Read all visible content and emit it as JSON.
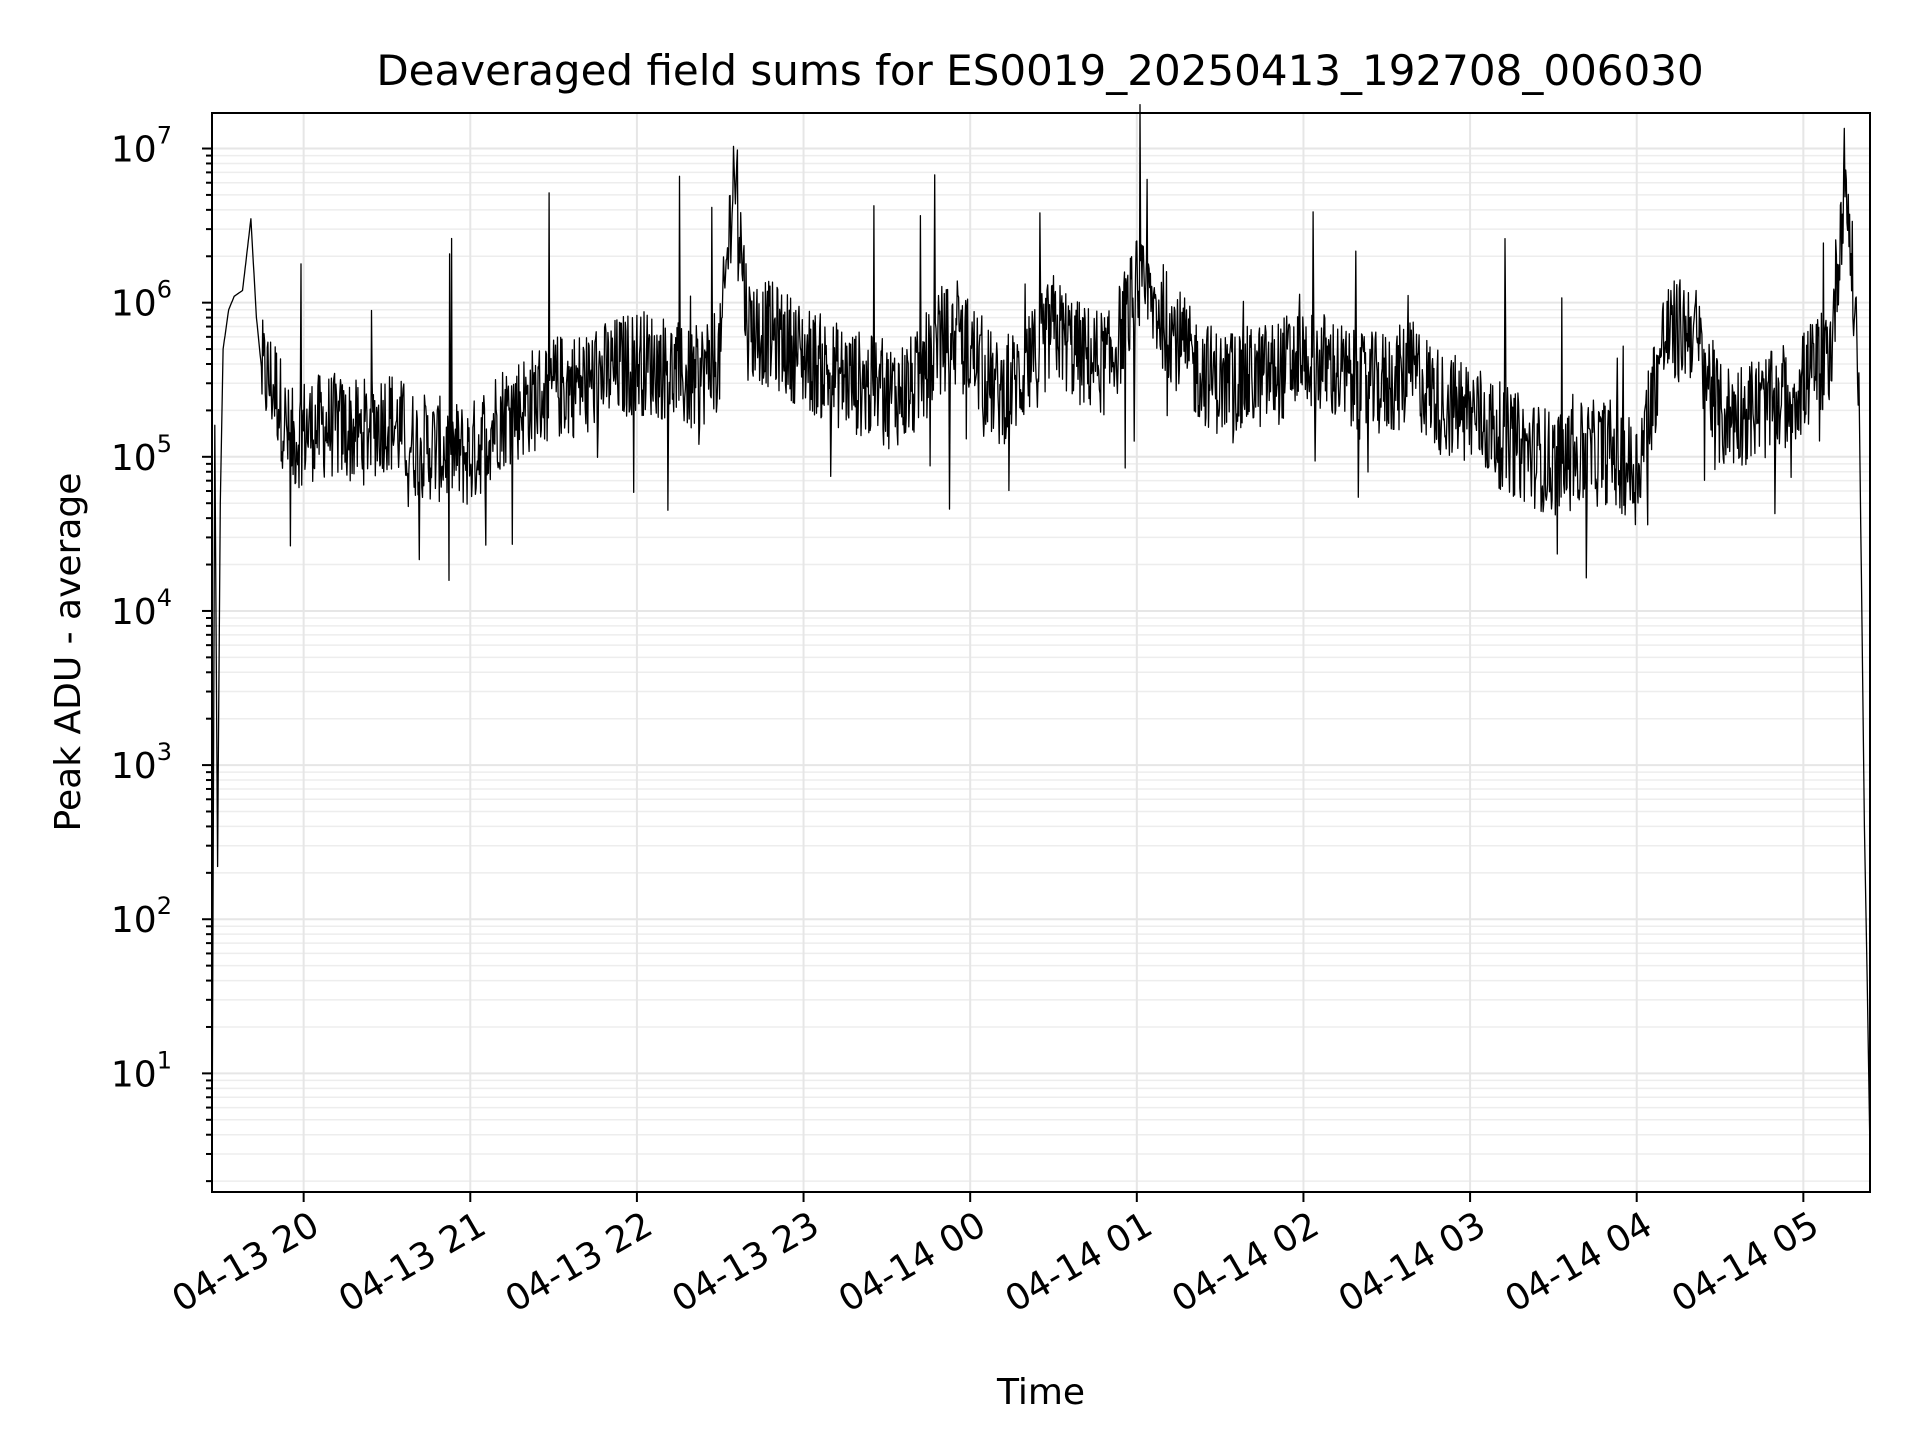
{
  "chart_data": {
    "type": "line",
    "title": "Deaveraged field sums for ES0019_20250413_192708_006030",
    "xlabel": "Time",
    "ylabel": "Peak ADU - average",
    "yscale": "log",
    "ylim": [
      1.7,
      17000000
    ],
    "xlim": [
      "2025-04-13 19:27",
      "2025-04-14 05:24"
    ],
    "grid": true,
    "line_color": "#000000",
    "x_ticks": [
      "04-13 20",
      "04-13 21",
      "04-13 22",
      "04-13 23",
      "04-14 00",
      "04-14 01",
      "04-14 02",
      "04-14 03",
      "04-14 04",
      "04-14 05"
    ],
    "x_tick_times": [
      "2025-04-13 20:00",
      "2025-04-13 21:00",
      "2025-04-13 22:00",
      "2025-04-13 23:00",
      "2025-04-14 00:00",
      "2025-04-14 01:00",
      "2025-04-14 02:00",
      "2025-04-14 03:00",
      "2025-04-14 04:00",
      "2025-04-14 05:00"
    ],
    "y_ticks": [
      {
        "base": "10",
        "exp": "1",
        "value": 10
      },
      {
        "base": "10",
        "exp": "2",
        "value": 100
      },
      {
        "base": "10",
        "exp": "3",
        "value": 1000
      },
      {
        "base": "10",
        "exp": "4",
        "value": 10000
      },
      {
        "base": "10",
        "exp": "5",
        "value": 100000
      },
      {
        "base": "10",
        "exp": "6",
        "value": 1000000
      },
      {
        "base": "10",
        "exp": "7",
        "value": 10000000
      }
    ],
    "series": [
      {
        "x": [
          "2025-04-13 19:27",
          "2025-04-13 19:28",
          "2025-04-13 19:29",
          "2025-04-13 19:30",
          "2025-04-13 19:31",
          "2025-04-13 19:33",
          "2025-04-13 19:35",
          "2025-04-13 19:38",
          "2025-04-13 19:41",
          "2025-04-13 19:43",
          "2025-04-13 19:45",
          "2025-04-13 19:50",
          "2025-04-13 19:55",
          "2025-04-13 20:00",
          "2025-04-13 20:10",
          "2025-04-13 20:20",
          "2025-04-13 20:30",
          "2025-04-13 20:40",
          "2025-04-13 20:50",
          "2025-04-13 21:00",
          "2025-04-13 21:10",
          "2025-04-13 21:20",
          "2025-04-13 21:30",
          "2025-04-13 21:40",
          "2025-04-13 21:50",
          "2025-04-13 22:00",
          "2025-04-13 22:10",
          "2025-04-13 22:20",
          "2025-04-13 22:30",
          "2025-04-13 22:35",
          "2025-04-13 22:40",
          "2025-04-13 22:50",
          "2025-04-13 23:00",
          "2025-04-13 23:10",
          "2025-04-13 23:20",
          "2025-04-13 23:30",
          "2025-04-13 23:40",
          "2025-04-13 23:50",
          "2025-04-14 00:00",
          "2025-04-14 00:10",
          "2025-04-14 00:20",
          "2025-04-14 00:30",
          "2025-04-14 00:40",
          "2025-04-14 00:50",
          "2025-04-14 01:00",
          "2025-04-14 01:10",
          "2025-04-14 01:20",
          "2025-04-14 01:30",
          "2025-04-14 01:40",
          "2025-04-14 01:50",
          "2025-04-14 02:00",
          "2025-04-14 02:10",
          "2025-04-14 02:20",
          "2025-04-14 02:30",
          "2025-04-14 02:40",
          "2025-04-14 02:50",
          "2025-04-14 03:00",
          "2025-04-14 03:10",
          "2025-04-14 03:20",
          "2025-04-14 03:30",
          "2025-04-14 03:40",
          "2025-04-14 03:50",
          "2025-04-14 04:00",
          "2025-04-14 04:10",
          "2025-04-14 04:20",
          "2025-04-14 04:30",
          "2025-04-14 04:40",
          "2025-04-14 04:50",
          "2025-04-14 05:00",
          "2025-04-14 05:10",
          "2025-04-14 05:15",
          "2025-04-14 05:20",
          "2025-04-14 05:22",
          "2025-04-14 05:23",
          "2025-04-14 05:24"
        ],
        "y": [
          2,
          160000,
          220,
          50000,
          500000,
          900000,
          1100000,
          1200000,
          3500000,
          800000,
          350000,
          280000,
          120000,
          150000,
          160000,
          140000,
          180000,
          120000,
          110000,
          100000,
          180000,
          220000,
          280000,
          300000,
          350000,
          420000,
          380000,
          300000,
          450000,
          8000000,
          700000,
          600000,
          450000,
          350000,
          300000,
          250000,
          280000,
          600000,
          500000,
          250000,
          350000,
          700000,
          450000,
          400000,
          1200000,
          800000,
          400000,
          300000,
          320000,
          350000,
          450000,
          380000,
          280000,
          300000,
          350000,
          220000,
          200000,
          140000,
          110000,
          90000,
          100000,
          110000,
          80000,
          600000,
          700000,
          180000,
          200000,
          220000,
          300000,
          500000,
          7500000,
          350000,
          400,
          40,
          3
        ]
      }
    ]
  }
}
